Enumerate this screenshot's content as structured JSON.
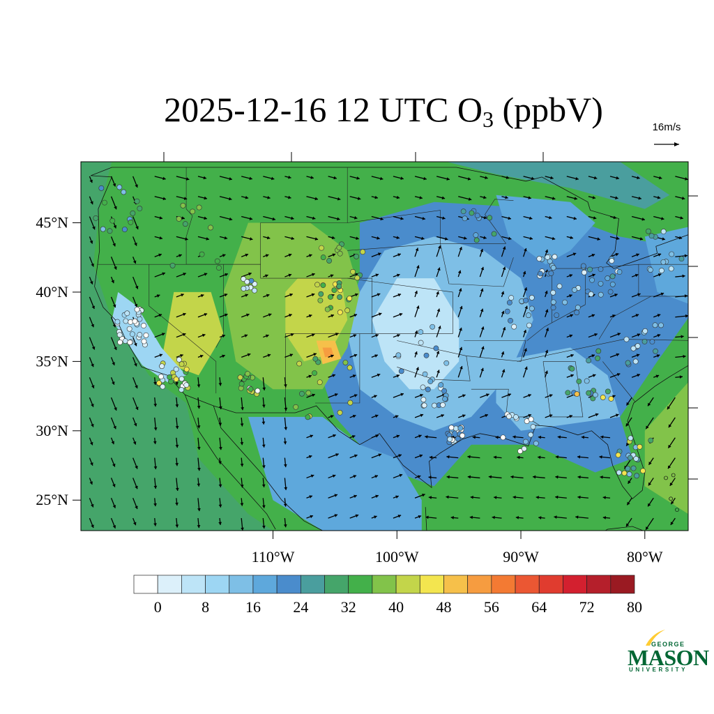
{
  "title": {
    "main": "2025-12-16 12 UTC O",
    "subscript": "3",
    "suffix": " (ppbV)"
  },
  "wind_reference": {
    "label": "16m/s",
    "speed_ms": 16
  },
  "map": {
    "region": "Contiguous United States",
    "lon_range": [
      -125.5,
      -76.5
    ],
    "lat_range": [
      22.8,
      49.4
    ],
    "lat_ticks": [
      {
        "value": 45,
        "label": "45°N"
      },
      {
        "value": 40,
        "label": "40°N"
      },
      {
        "value": 35,
        "label": "35°N"
      },
      {
        "value": 30,
        "label": "30°N"
      },
      {
        "value": 25,
        "label": "25°N"
      }
    ],
    "lon_ticks": [
      {
        "value": -110,
        "label": "110°W"
      },
      {
        "value": -100,
        "label": "100°W"
      },
      {
        "value": -90,
        "label": "90°W"
      },
      {
        "value": -80,
        "label": "80°W"
      }
    ]
  },
  "colorbar": {
    "colors": [
      "#ffffff",
      "#dcf0fa",
      "#bde4f7",
      "#9dd6f3",
      "#7ebfe6",
      "#5ea8dc",
      "#4a8ccc",
      "#4a9e9e",
      "#45a56a",
      "#43b04a",
      "#82c34a",
      "#c3d54a",
      "#f3e54f",
      "#f6c04a",
      "#f69c40",
      "#f37a33",
      "#eb5733",
      "#e03c2f",
      "#d3202f",
      "#b51f2b",
      "#9a1a22"
    ],
    "tick_labels": [
      "0",
      "8",
      "16",
      "24",
      "32",
      "40",
      "48",
      "56",
      "64",
      "72",
      "80"
    ]
  },
  "logo": {
    "line1": "GEORGE",
    "line2": "MASON",
    "line3": "UNIVERSITY",
    "color": "#006633"
  }
}
